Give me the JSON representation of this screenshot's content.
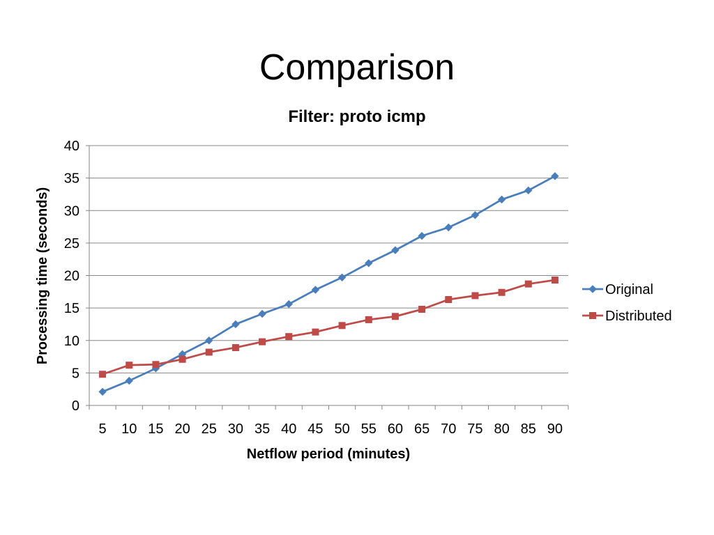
{
  "slide": {
    "title": "Comparison"
  },
  "chart_data": {
    "type": "line",
    "title": "Filter: proto icmp",
    "xlabel": "Netflow period (minutes)",
    "ylabel": "Processing time (seconds)",
    "categories": [
      "5",
      "10",
      "15",
      "20",
      "25",
      "30",
      "35",
      "40",
      "45",
      "50",
      "55",
      "60",
      "65",
      "70",
      "75",
      "80",
      "85",
      "90"
    ],
    "ylim": [
      0,
      40
    ],
    "yticks": [
      0,
      5,
      10,
      15,
      20,
      25,
      30,
      35,
      40
    ],
    "grid": true,
    "legend": "right",
    "series": [
      {
        "name": "Original",
        "color": "#4A7EBB",
        "marker": "diamond",
        "values": [
          2.1,
          3.8,
          5.7,
          7.9,
          10.0,
          12.5,
          14.1,
          15.6,
          17.8,
          19.7,
          21.9,
          23.9,
          26.1,
          27.4,
          29.3,
          31.7,
          33.1,
          35.3
        ]
      },
      {
        "name": "Distributed",
        "color": "#BE4B48",
        "marker": "square",
        "values": [
          4.8,
          6.2,
          6.3,
          7.1,
          8.2,
          8.9,
          9.8,
          10.6,
          11.3,
          12.3,
          13.2,
          13.7,
          14.8,
          16.3,
          16.9,
          17.4,
          18.7,
          19.3
        ]
      }
    ]
  }
}
